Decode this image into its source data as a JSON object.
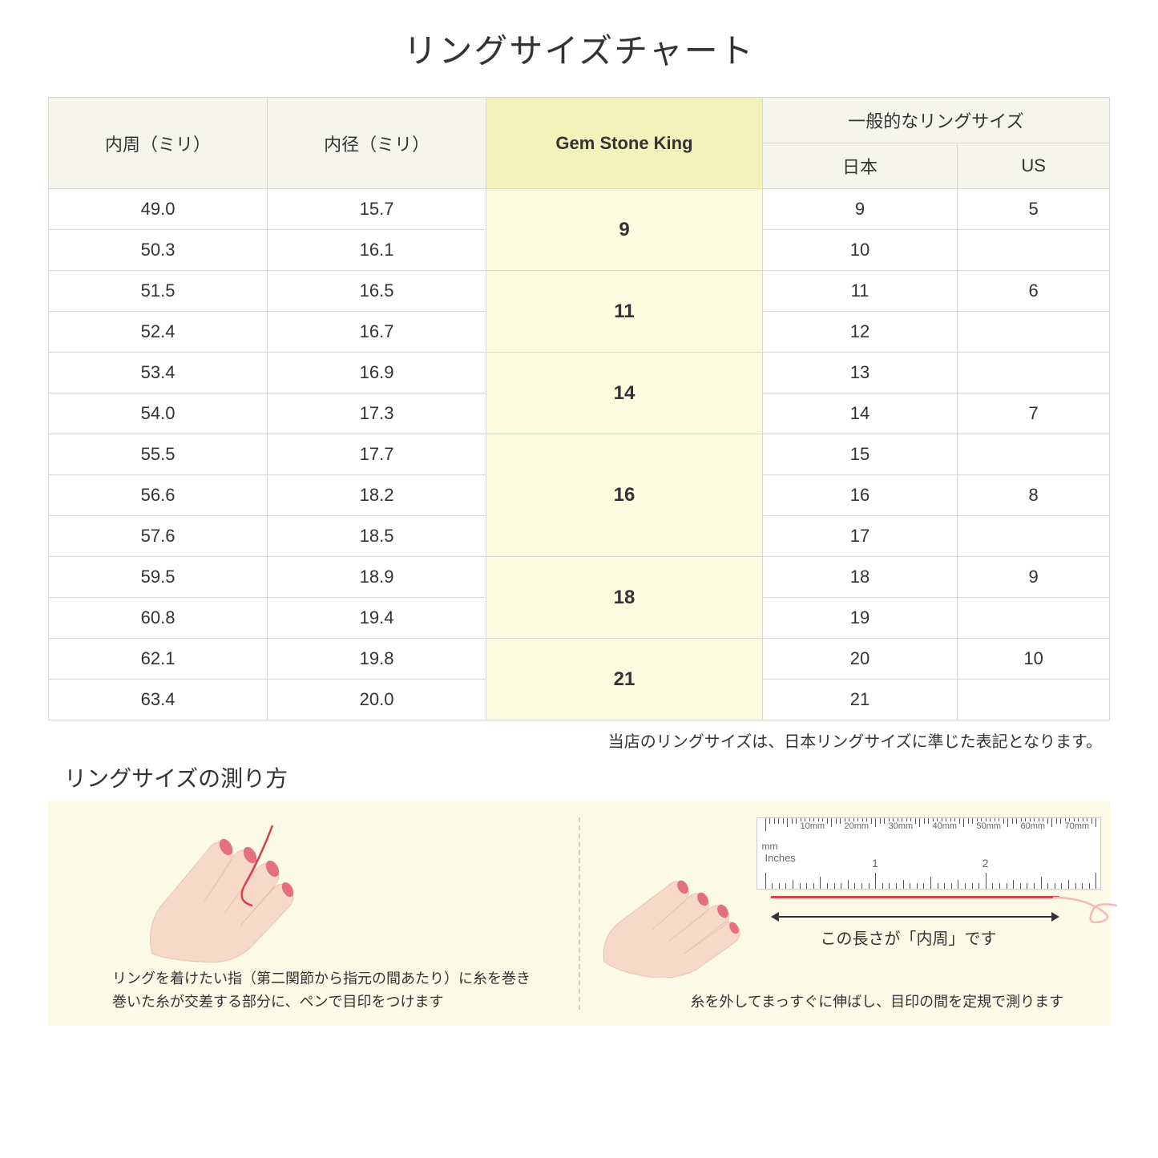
{
  "title": "リングサイズチャート",
  "table": {
    "headers": {
      "circumference": "内周（ミリ）",
      "diameter": "内径（ミリ）",
      "gemstone": "Gem Stone King",
      "general": "一般的なリングサイズ",
      "japan": "日本",
      "us": "US"
    },
    "header_bg": "#f5f5ed",
    "highlight_header_bg": "#f2f2bb",
    "highlight_cell_bg": "#fbfbe0",
    "border_color": "#d8d8d0",
    "groups": [
      {
        "gsk": "9",
        "rows": [
          {
            "circ": "49.0",
            "diam": "15.7",
            "jp": "9",
            "us": "5"
          },
          {
            "circ": "50.3",
            "diam": "16.1",
            "jp": "10",
            "us": ""
          }
        ]
      },
      {
        "gsk": "11",
        "rows": [
          {
            "circ": "51.5",
            "diam": "16.5",
            "jp": "11",
            "us": "6"
          },
          {
            "circ": "52.4",
            "diam": "16.7",
            "jp": "12",
            "us": ""
          }
        ]
      },
      {
        "gsk": "14",
        "rows": [
          {
            "circ": "53.4",
            "diam": "16.9",
            "jp": "13",
            "us": ""
          },
          {
            "circ": "54.0",
            "diam": "17.3",
            "jp": "14",
            "us": "7"
          }
        ]
      },
      {
        "gsk": "16",
        "rows": [
          {
            "circ": "55.5",
            "diam": "17.7",
            "jp": "15",
            "us": ""
          },
          {
            "circ": "56.6",
            "diam": "18.2",
            "jp": "16",
            "us": "8"
          },
          {
            "circ": "57.6",
            "diam": "18.5",
            "jp": "17",
            "us": ""
          }
        ]
      },
      {
        "gsk": "18",
        "rows": [
          {
            "circ": "59.5",
            "diam": "18.9",
            "jp": "18",
            "us": "9"
          },
          {
            "circ": "60.8",
            "diam": "19.4",
            "jp": "19",
            "us": ""
          }
        ]
      },
      {
        "gsk": "21",
        "rows": [
          {
            "circ": "62.1",
            "diam": "19.8",
            "jp": "20",
            "us": "10"
          },
          {
            "circ": "63.4",
            "diam": "20.0",
            "jp": "21",
            "us": ""
          }
        ]
      }
    ]
  },
  "note": "当店のリングサイズは、日本リングサイズに準じた表記となります。",
  "howto": {
    "title": "リングサイズの測り方",
    "panel_bg": "#fafae6",
    "left_caption": "リングを着けたい指（第二関節から指元の間あたり）に糸を巻き\n巻いた糸が交差する部分に、ペンで目印をつけます",
    "right_caption": "糸を外してまっすぐに伸ばし、目印の間を定規で測ります",
    "ruler_label": "この長さが「内周」です",
    "ruler_mm_labels": [
      "10mm",
      "20mm",
      "30mm",
      "40mm",
      "50mm",
      "60mm",
      "70mm"
    ],
    "ruler_mm_unit": "mm",
    "ruler_inches_label": "Inches",
    "ruler_inch_labels": [
      "1",
      "2"
    ],
    "skin_color": "#f7d9ca",
    "nail_color": "#e4707d",
    "thread_color": "#d8414b"
  }
}
